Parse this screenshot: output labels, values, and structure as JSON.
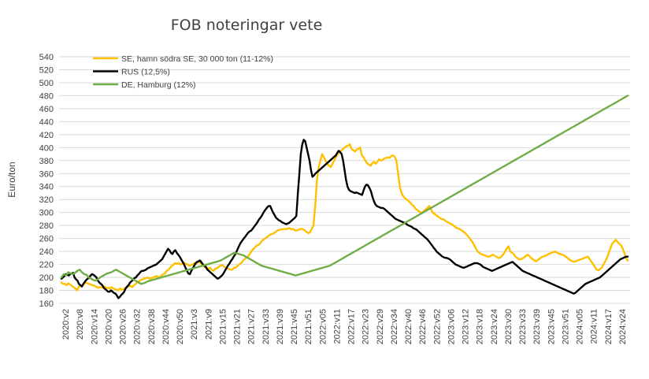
{
  "chart_data": {
    "type": "line",
    "title": "FOB noteringar vete",
    "xlabel": "",
    "ylabel": "Euro/ton",
    "ylim": [
      160,
      540
    ],
    "yticks": [
      160,
      180,
      200,
      220,
      240,
      260,
      280,
      300,
      320,
      340,
      360,
      380,
      400,
      420,
      440,
      460,
      480,
      500,
      520,
      540
    ],
    "grid": true,
    "legend_position": "top-left",
    "x_tick_labels": [
      "2020:v2",
      "2020:v8",
      "2020:v14",
      "2020:v20",
      "2020:v26",
      "2020:v32",
      "2020:v38",
      "2020:v44",
      "2020:v50",
      "2021:v3",
      "2021:v9",
      "2021:v15",
      "2021:v21",
      "2021:v27",
      "2021:v33",
      "2021:v39",
      "2021:v45",
      "2021:v51",
      "2022:v05",
      "2022:v11",
      "2022:v17",
      "2022:v23",
      "2022:v29",
      "2022:v34",
      "2022:v40",
      "2022:v46",
      "2022:v52",
      "2023:v06",
      "2023:v12",
      "2023:v18",
      "2023:v24",
      "2023:v30",
      "2023:v33",
      "2023:v39",
      "2023:v45",
      "2023:v51",
      "2024:v05",
      "2024:v11",
      "2024:v17",
      "2024:v24"
    ],
    "series": [
      {
        "name": "SE, hamn södra SE, 30 000 ton (11-12%)",
        "color": "#FFC000",
        "values": [
          192,
          190,
          190,
          188,
          191,
          189,
          187,
          185,
          183,
          180,
          185,
          188,
          186,
          190,
          192,
          191,
          190,
          189,
          188,
          187,
          186,
          184,
          185,
          185,
          184,
          186,
          183,
          184,
          183,
          185,
          183,
          182,
          181,
          180,
          183,
          181,
          182,
          184,
          185,
          186,
          187,
          185,
          188,
          190,
          193,
          194,
          196,
          197,
          198,
          199,
          200,
          198,
          199,
          200,
          201,
          202,
          201,
          200,
          203,
          205,
          206,
          210,
          212,
          215,
          218,
          220,
          222,
          221,
          222,
          220,
          221,
          223,
          221,
          220,
          218,
          219,
          220,
          222,
          221,
          223,
          224,
          221,
          218,
          216,
          214,
          213,
          215,
          212,
          210,
          213,
          214,
          216,
          218,
          219,
          217,
          215,
          214,
          213,
          212,
          212,
          215,
          215,
          218,
          220,
          222,
          225,
          228,
          230,
          232,
          236,
          240,
          243,
          246,
          249,
          250,
          252,
          256,
          258,
          260,
          262,
          264,
          266,
          267,
          268,
          270,
          272,
          273,
          274,
          274,
          275,
          274,
          275,
          276,
          274,
          275,
          273,
          272,
          273,
          274,
          275,
          274,
          272,
          270,
          268,
          270,
          275,
          280,
          310,
          350,
          370,
          380,
          390,
          385,
          380,
          375,
          372,
          370,
          375,
          380,
          385,
          390,
          393,
          395,
          398,
          400,
          402,
          403,
          405,
          398,
          396,
          394,
          397,
          398,
          400,
          388,
          385,
          380,
          376,
          374,
          372,
          376,
          378,
          375,
          378,
          382,
          380,
          381,
          383,
          384,
          385,
          384,
          387,
          388,
          386,
          380,
          360,
          340,
          330,
          325,
          322,
          320,
          318,
          315,
          312,
          310,
          306,
          304,
          302,
          300,
          300,
          302,
          305,
          307,
          310,
          305,
          300,
          298,
          296,
          294,
          292,
          290,
          290,
          288,
          286,
          285,
          283,
          282,
          280,
          278,
          276,
          275,
          274,
          272,
          270,
          268,
          265,
          262,
          258,
          255,
          250,
          245,
          240,
          238,
          236,
          235,
          234,
          233,
          232,
          232,
          234,
          235,
          233,
          232,
          230,
          230,
          233,
          236,
          240,
          245,
          248,
          240,
          238,
          236,
          232,
          230,
          228,
          228,
          229,
          231,
          233,
          235,
          233,
          230,
          228,
          226,
          225,
          227,
          229,
          231,
          232,
          233,
          234,
          236,
          237,
          238,
          239,
          240,
          238,
          237,
          236,
          235,
          234,
          232,
          230,
          228,
          226,
          225,
          224,
          225,
          226,
          227,
          228,
          229,
          230,
          231,
          232,
          228,
          224,
          220,
          216,
          212,
          211,
          213,
          215,
          220,
          225,
          230,
          238,
          245,
          252,
          255,
          258,
          255,
          252,
          250,
          245,
          238,
          230,
          226
        ]
      },
      {
        "name": "RUS (12,5%)",
        "color": "#000000",
        "values": [
          198,
          200,
          202,
          205,
          204,
          203,
          205,
          206,
          207,
          200,
          197,
          195,
          190,
          188,
          186,
          190,
          193,
          196,
          198,
          200,
          203,
          205,
          204,
          202,
          200,
          195,
          192,
          190,
          188,
          184,
          182,
          180,
          178,
          178,
          180,
          178,
          176,
          175,
          172,
          168,
          170,
          173,
          175,
          178,
          183,
          186,
          188,
          192,
          194,
          196,
          199,
          200,
          203,
          205,
          208,
          210,
          210,
          211,
          212,
          214,
          215,
          216,
          217,
          218,
          219,
          220,
          222,
          224,
          226,
          228,
          232,
          236,
          240,
          244,
          242,
          238,
          236,
          240,
          242,
          238,
          235,
          232,
          228,
          224,
          220,
          215,
          210,
          206,
          205,
          210,
          214,
          218,
          222,
          224,
          225,
          226,
          223,
          220,
          218,
          216,
          212,
          210,
          208,
          206,
          204,
          202,
          200,
          198,
          199,
          201,
          203,
          206,
          210,
          214,
          218,
          221,
          225,
          228,
          232,
          235,
          240,
          245,
          250,
          254,
          257,
          260,
          263,
          266,
          269,
          271,
          272,
          275,
          278,
          281,
          284,
          288,
          291,
          294,
          298,
          302,
          305,
          308,
          310,
          310,
          305,
          300,
          296,
          292,
          290,
          288,
          287,
          285,
          284,
          283,
          282,
          283,
          284,
          286,
          288,
          290,
          292,
          295,
          330,
          360,
          390,
          405,
          412,
          410,
          400,
          390,
          380,
          365,
          355,
          357,
          360,
          362,
          364,
          366,
          368,
          370,
          372,
          374,
          376,
          378,
          380,
          382,
          384,
          386,
          388,
          392,
          395,
          393,
          390,
          380,
          365,
          350,
          340,
          335,
          333,
          332,
          331,
          330,
          331,
          330,
          329,
          328,
          327,
          334,
          340,
          343,
          342,
          338,
          333,
          325,
          318,
          313,
          310,
          309,
          308,
          307,
          307,
          306,
          304,
          302,
          300,
          298,
          296,
          294,
          292,
          290,
          289,
          288,
          287,
          286,
          285,
          284,
          283,
          281,
          280,
          279,
          278,
          276,
          275,
          274,
          272,
          270,
          268,
          266,
          264,
          262,
          260,
          258,
          255,
          252,
          249,
          246,
          243,
          240,
          238,
          236,
          234,
          232,
          231,
          230,
          230,
          229,
          228,
          226,
          224,
          222,
          220,
          219,
          218,
          217,
          216,
          215,
          215,
          216,
          217,
          218,
          219,
          220,
          221,
          222,
          222,
          222,
          221,
          220,
          218,
          216,
          215,
          214,
          213,
          212,
          211,
          210,
          211,
          212,
          213,
          214,
          215,
          216,
          217,
          218,
          219,
          220,
          221,
          222,
          223,
          224,
          222,
          220,
          218,
          216,
          214,
          212,
          210,
          209,
          208,
          207,
          206,
          205,
          204,
          203,
          202,
          201,
          200,
          199,
          198,
          197,
          196,
          195,
          194,
          193,
          192,
          191,
          190,
          189,
          188,
          187,
          186,
          185,
          184,
          183,
          182,
          181,
          180,
          179,
          178,
          177,
          176,
          175,
          176,
          178,
          180,
          182,
          184,
          186,
          188,
          190,
          191,
          192,
          193,
          194,
          195,
          196,
          197,
          198,
          199,
          200,
          202,
          204,
          206,
          208,
          210,
          212,
          214,
          216,
          218,
          220,
          222,
          224,
          226,
          228,
          229,
          230,
          231,
          232,
          232
        ]
      },
      {
        "name": "DE, Hamburg (12%)",
        "color": "#70AD47",
        "values": [
          200,
          205,
          203,
          208,
          206,
          205,
          207,
          210,
          212,
          208,
          205,
          204,
          200,
          198,
          196,
          195,
          197,
          200,
          202,
          204,
          206,
          207,
          208,
          210,
          212,
          210,
          208,
          206,
          204,
          202,
          200,
          198,
          196,
          194,
          192,
          190,
          191,
          192,
          194,
          195,
          196,
          197,
          198,
          199,
          200,
          201,
          202,
          203,
          204,
          205,
          206,
          207,
          208,
          209,
          210,
          211,
          212,
          213,
          214,
          215,
          216,
          217,
          218,
          219,
          220,
          221,
          222,
          223,
          224,
          225,
          226,
          228,
          230,
          232,
          234,
          236,
          238,
          237,
          236,
          235,
          234,
          232,
          230,
          228,
          226,
          224,
          222,
          220,
          218,
          217,
          216,
          215,
          214,
          213,
          212,
          211,
          210,
          209,
          208,
          207,
          206,
          205,
          204,
          203,
          204,
          205,
          206,
          207,
          208,
          209,
          210,
          211,
          212,
          213,
          214,
          215,
          216,
          217,
          218,
          220,
          222,
          224,
          226,
          228,
          230,
          232,
          234,
          236,
          238,
          240,
          242,
          244,
          246,
          248,
          250,
          252,
          254,
          256,
          258,
          260,
          262,
          264,
          266,
          268,
          270,
          272,
          274,
          276,
          278,
          280,
          282,
          284,
          286,
          288,
          290,
          292,
          294,
          296,
          298,
          300,
          302,
          304,
          306,
          308,
          310,
          312,
          314,
          316,
          318,
          320,
          322,
          324,
          326,
          328,
          330,
          332,
          334,
          336,
          338,
          340,
          342,
          344,
          346,
          348,
          350,
          352,
          354,
          356,
          358,
          360,
          362,
          364,
          366,
          368,
          370,
          372,
          374,
          376,
          378,
          380,
          382,
          384,
          386,
          388,
          390,
          392,
          394,
          396,
          398,
          400,
          402,
          404,
          406,
          408,
          410,
          412,
          414,
          416,
          418,
          420,
          422,
          424,
          426,
          428,
          430,
          432,
          434,
          436,
          438,
          440,
          442,
          444,
          446,
          448,
          450,
          452,
          454,
          456,
          458,
          460,
          462,
          464,
          466,
          468,
          470,
          472,
          474,
          476,
          478,
          480
        ]
      }
    ]
  }
}
